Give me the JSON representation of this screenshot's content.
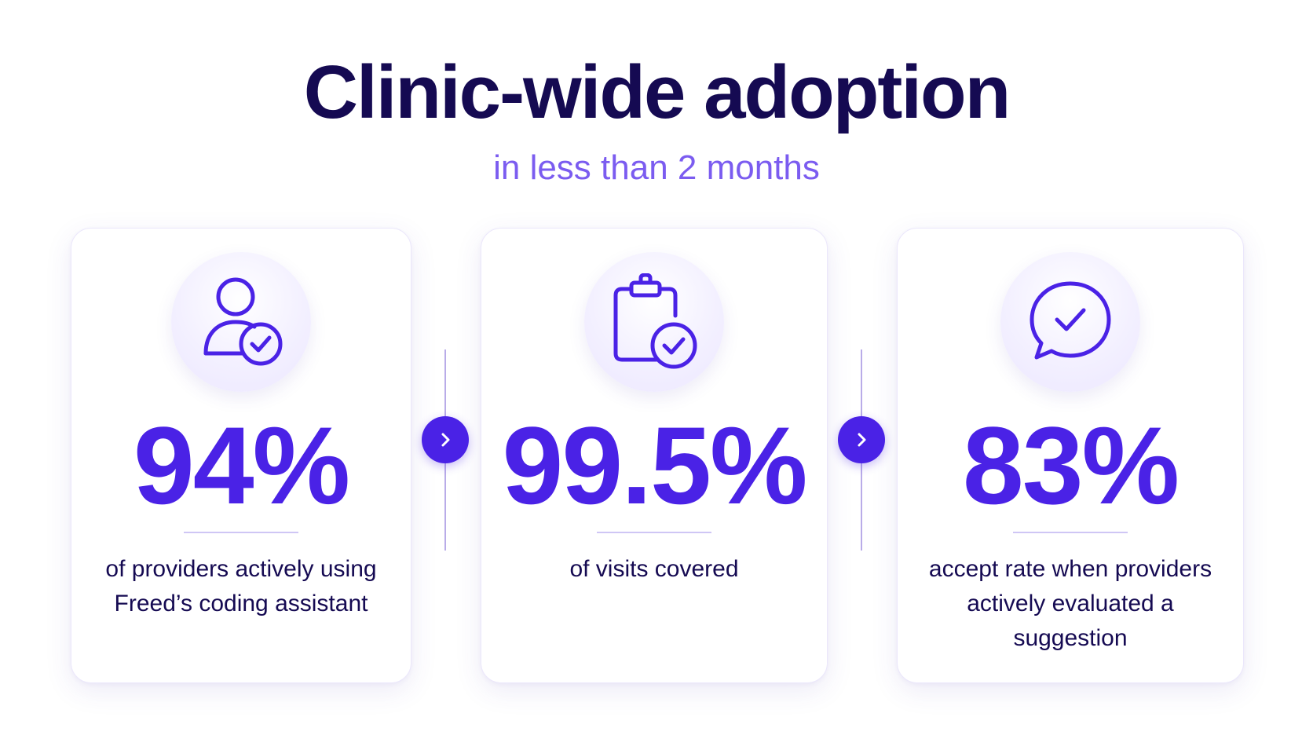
{
  "header": {
    "title": "Clinic-wide adoption",
    "subtitle": "in less than 2 months"
  },
  "cards": [
    {
      "icon": "user-check-icon",
      "stat": "94%",
      "description": "of providers actively using Freed’s coding assistant"
    },
    {
      "icon": "clipboard-check-icon",
      "stat": "99.5%",
      "description": "of visits covered"
    },
    {
      "icon": "chat-check-icon",
      "stat": "83%",
      "description": "accept rate when providers actively evaluated a suggestion"
    }
  ],
  "connectors": [
    {
      "icon": "chevron-right-icon"
    },
    {
      "icon": "chevron-right-icon"
    }
  ],
  "colors": {
    "title": "#150a52",
    "subtitle": "#7b5cf0",
    "accent": "#4a22e6",
    "text": "#150a52",
    "divider": "#cfc6f5"
  }
}
